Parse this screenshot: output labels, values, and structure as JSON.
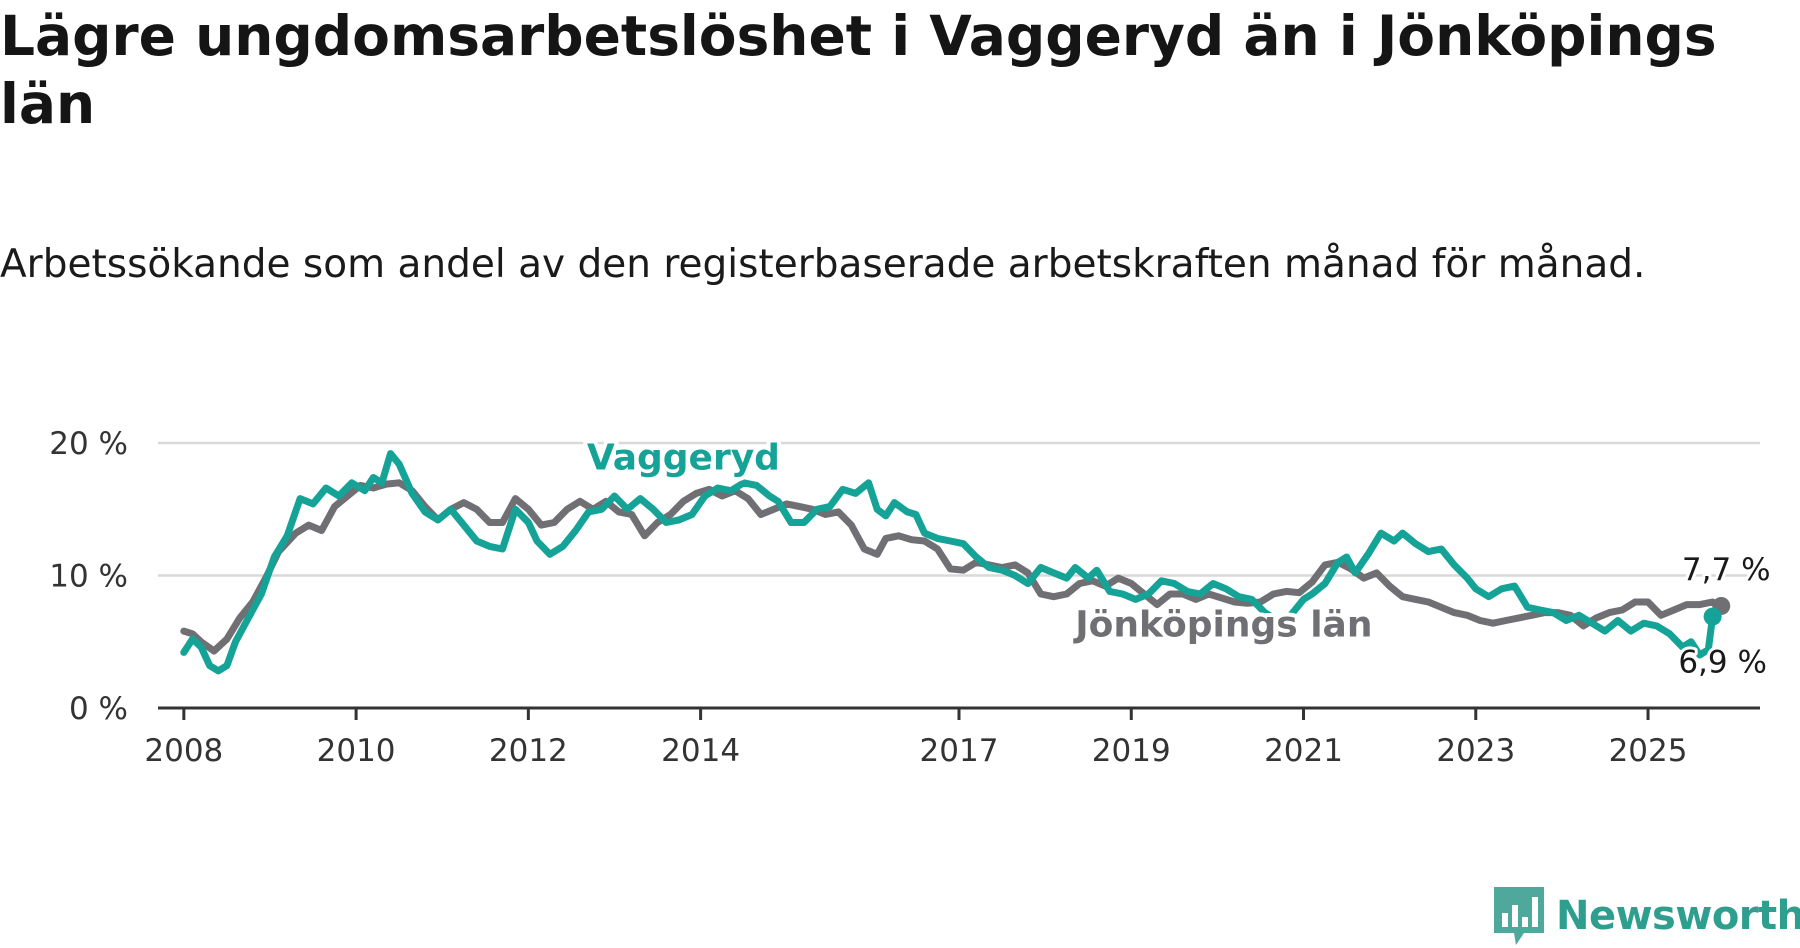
{
  "page": {
    "title": "Lägre ungdomsarbetslöshet i Vaggeryd än i Jönköpings län",
    "subtitle": "Arbetssökande som andel av den registerbaserade arbetskraften månad för månad.",
    "brand": "Newsworthy"
  },
  "colors": {
    "vaggeryd": "#14a396",
    "jonkoping": "#706f74",
    "grid": "#d9d9d9",
    "axis": "#333333"
  },
  "icons": {
    "brand_logo": "newsworthy-bar-chart-icon"
  },
  "chart_data": {
    "type": "line",
    "title": "Lägre ungdomsarbetslöshet i Vaggeryd än i Jönköpings län",
    "subtitle": "Arbetssökande som andel av den registerbaserade arbetskraften månad för månad.",
    "xlabel": "",
    "ylabel": "",
    "ylim": [
      0,
      20
    ],
    "xlim": [
      2007.7,
      2026.3
    ],
    "grid": true,
    "legend": "inline labels",
    "yticks": [
      {
        "value": 0,
        "label": "0 %"
      },
      {
        "value": 10,
        "label": "10 %"
      },
      {
        "value": 20,
        "label": "20 %"
      }
    ],
    "xticks": [
      {
        "value": 2008,
        "label": "2008"
      },
      {
        "value": 2010,
        "label": "2010"
      },
      {
        "value": 2012,
        "label": "2012"
      },
      {
        "value": 2014,
        "label": "2014"
      },
      {
        "value": 2017,
        "label": "2017"
      },
      {
        "value": 2019,
        "label": "2019"
      },
      {
        "value": 2021,
        "label": "2021"
      },
      {
        "value": 2023,
        "label": "2023"
      },
      {
        "value": 2025,
        "label": "2025"
      }
    ],
    "series": [
      {
        "name": "Jönköpings län",
        "key": "jonkoping",
        "points": [
          [
            2008.0,
            5.8
          ],
          [
            2008.1,
            5.6
          ],
          [
            2008.2,
            5.0
          ],
          [
            2008.35,
            4.3
          ],
          [
            2008.5,
            5.2
          ],
          [
            2008.65,
            6.8
          ],
          [
            2008.8,
            8.0
          ],
          [
            2008.95,
            9.8
          ],
          [
            2009.1,
            11.8
          ],
          [
            2009.3,
            13.2
          ],
          [
            2009.45,
            13.8
          ],
          [
            2009.6,
            13.4
          ],
          [
            2009.75,
            15.2
          ],
          [
            2009.9,
            16.0
          ],
          [
            2010.05,
            16.8
          ],
          [
            2010.2,
            16.6
          ],
          [
            2010.35,
            16.9
          ],
          [
            2010.5,
            17.0
          ],
          [
            2010.65,
            16.4
          ],
          [
            2010.8,
            15.2
          ],
          [
            2010.95,
            14.2
          ],
          [
            2011.1,
            15.0
          ],
          [
            2011.25,
            15.5
          ],
          [
            2011.4,
            15.0
          ],
          [
            2011.55,
            14.0
          ],
          [
            2011.7,
            14.0
          ],
          [
            2011.85,
            15.8
          ],
          [
            2012.0,
            15.0
          ],
          [
            2012.15,
            13.8
          ],
          [
            2012.3,
            14.0
          ],
          [
            2012.45,
            15.0
          ],
          [
            2012.6,
            15.6
          ],
          [
            2012.75,
            15.0
          ],
          [
            2012.9,
            15.6
          ],
          [
            2013.05,
            14.8
          ],
          [
            2013.2,
            14.6
          ],
          [
            2013.35,
            13.0
          ],
          [
            2013.5,
            14.0
          ],
          [
            2013.65,
            14.6
          ],
          [
            2013.8,
            15.6
          ],
          [
            2013.95,
            16.2
          ],
          [
            2014.1,
            16.5
          ],
          [
            2014.25,
            16.0
          ],
          [
            2014.4,
            16.4
          ],
          [
            2014.55,
            15.8
          ],
          [
            2014.7,
            14.6
          ],
          [
            2014.85,
            15.0
          ],
          [
            2015.0,
            15.4
          ],
          [
            2015.15,
            15.2
          ],
          [
            2015.3,
            15.0
          ],
          [
            2015.45,
            14.6
          ],
          [
            2015.6,
            14.8
          ],
          [
            2015.75,
            13.8
          ],
          [
            2015.9,
            12.0
          ],
          [
            2016.05,
            11.6
          ],
          [
            2016.15,
            12.8
          ],
          [
            2016.3,
            13.0
          ],
          [
            2016.45,
            12.7
          ],
          [
            2016.6,
            12.6
          ],
          [
            2016.75,
            12.0
          ],
          [
            2016.9,
            10.5
          ],
          [
            2017.05,
            10.4
          ],
          [
            2017.2,
            11.0
          ],
          [
            2017.35,
            10.8
          ],
          [
            2017.5,
            10.6
          ],
          [
            2017.65,
            10.8
          ],
          [
            2017.8,
            10.2
          ],
          [
            2017.95,
            8.6
          ],
          [
            2018.1,
            8.4
          ],
          [
            2018.25,
            8.6
          ],
          [
            2018.4,
            9.4
          ],
          [
            2018.55,
            9.6
          ],
          [
            2018.7,
            9.2
          ],
          [
            2018.85,
            9.8
          ],
          [
            2019.0,
            9.4
          ],
          [
            2019.15,
            8.6
          ],
          [
            2019.3,
            7.8
          ],
          [
            2019.45,
            8.6
          ],
          [
            2019.6,
            8.6
          ],
          [
            2019.75,
            8.2
          ],
          [
            2019.9,
            8.6
          ],
          [
            2020.05,
            8.3
          ],
          [
            2020.2,
            8.0
          ],
          [
            2020.35,
            7.9
          ],
          [
            2020.5,
            8.0
          ],
          [
            2020.65,
            8.6
          ],
          [
            2020.8,
            8.8
          ],
          [
            2020.95,
            8.7
          ],
          [
            2021.1,
            9.5
          ],
          [
            2021.25,
            10.8
          ],
          [
            2021.4,
            11.0
          ],
          [
            2021.55,
            10.5
          ],
          [
            2021.7,
            9.8
          ],
          [
            2021.85,
            10.2
          ],
          [
            2022.0,
            9.2
          ],
          [
            2022.15,
            8.4
          ],
          [
            2022.3,
            8.2
          ],
          [
            2022.45,
            8.0
          ],
          [
            2022.6,
            7.6
          ],
          [
            2022.75,
            7.2
          ],
          [
            2022.9,
            7.0
          ],
          [
            2023.05,
            6.6
          ],
          [
            2023.2,
            6.4
          ],
          [
            2023.35,
            6.6
          ],
          [
            2023.5,
            6.8
          ],
          [
            2023.65,
            7.0
          ],
          [
            2023.8,
            7.2
          ],
          [
            2023.95,
            7.2
          ],
          [
            2024.1,
            7.0
          ],
          [
            2024.25,
            6.2
          ],
          [
            2024.4,
            6.8
          ],
          [
            2024.55,
            7.2
          ],
          [
            2024.7,
            7.4
          ],
          [
            2024.85,
            8.0
          ],
          [
            2025.0,
            8.0
          ],
          [
            2025.15,
            7.0
          ],
          [
            2025.3,
            7.4
          ],
          [
            2025.45,
            7.8
          ],
          [
            2025.6,
            7.8
          ],
          [
            2025.75,
            8.0
          ],
          [
            2025.85,
            7.7
          ]
        ]
      },
      {
        "name": "Vaggeryd",
        "key": "vaggeryd",
        "points": [
          [
            2008.0,
            4.2
          ],
          [
            2008.1,
            5.2
          ],
          [
            2008.2,
            4.6
          ],
          [
            2008.3,
            3.2
          ],
          [
            2008.4,
            2.8
          ],
          [
            2008.5,
            3.2
          ],
          [
            2008.6,
            5.0
          ],
          [
            2008.75,
            6.8
          ],
          [
            2008.9,
            8.6
          ],
          [
            2009.05,
            11.4
          ],
          [
            2009.2,
            13.0
          ],
          [
            2009.35,
            15.8
          ],
          [
            2009.5,
            15.4
          ],
          [
            2009.65,
            16.6
          ],
          [
            2009.8,
            16.0
          ],
          [
            2009.95,
            17.0
          ],
          [
            2010.1,
            16.4
          ],
          [
            2010.2,
            17.4
          ],
          [
            2010.3,
            17.0
          ],
          [
            2010.4,
            19.2
          ],
          [
            2010.5,
            18.4
          ],
          [
            2010.65,
            16.2
          ],
          [
            2010.8,
            14.8
          ],
          [
            2010.95,
            14.2
          ],
          [
            2011.1,
            15.0
          ],
          [
            2011.25,
            13.8
          ],
          [
            2011.4,
            12.6
          ],
          [
            2011.55,
            12.2
          ],
          [
            2011.7,
            12.0
          ],
          [
            2011.85,
            15.0
          ],
          [
            2012.0,
            14.0
          ],
          [
            2012.1,
            12.6
          ],
          [
            2012.25,
            11.6
          ],
          [
            2012.4,
            12.2
          ],
          [
            2012.55,
            13.4
          ],
          [
            2012.7,
            14.8
          ],
          [
            2012.85,
            15.0
          ],
          [
            2013.0,
            16.0
          ],
          [
            2013.15,
            15.0
          ],
          [
            2013.3,
            15.8
          ],
          [
            2013.45,
            15.0
          ],
          [
            2013.6,
            14.0
          ],
          [
            2013.75,
            14.2
          ],
          [
            2013.9,
            14.6
          ],
          [
            2014.05,
            16.0
          ],
          [
            2014.2,
            16.6
          ],
          [
            2014.35,
            16.4
          ],
          [
            2014.5,
            17.0
          ],
          [
            2014.65,
            16.8
          ],
          [
            2014.8,
            16.0
          ],
          [
            2014.9,
            15.6
          ],
          [
            2015.05,
            14.0
          ],
          [
            2015.2,
            14.0
          ],
          [
            2015.35,
            15.0
          ],
          [
            2015.5,
            15.2
          ],
          [
            2015.65,
            16.5
          ],
          [
            2015.8,
            16.2
          ],
          [
            2015.95,
            17.0
          ],
          [
            2016.05,
            15.0
          ],
          [
            2016.15,
            14.5
          ],
          [
            2016.25,
            15.5
          ],
          [
            2016.4,
            14.8
          ],
          [
            2016.5,
            14.6
          ],
          [
            2016.6,
            13.2
          ],
          [
            2016.75,
            12.8
          ],
          [
            2016.9,
            12.6
          ],
          [
            2017.05,
            12.4
          ],
          [
            2017.2,
            11.4
          ],
          [
            2017.35,
            10.6
          ],
          [
            2017.5,
            10.4
          ],
          [
            2017.65,
            10.0
          ],
          [
            2017.8,
            9.4
          ],
          [
            2017.95,
            10.6
          ],
          [
            2018.1,
            10.2
          ],
          [
            2018.25,
            9.8
          ],
          [
            2018.35,
            10.6
          ],
          [
            2018.5,
            9.8
          ],
          [
            2018.6,
            10.4
          ],
          [
            2018.75,
            8.8
          ],
          [
            2018.9,
            8.6
          ],
          [
            2019.05,
            8.2
          ],
          [
            2019.2,
            8.6
          ],
          [
            2019.35,
            9.6
          ],
          [
            2019.5,
            9.4
          ],
          [
            2019.65,
            8.8
          ],
          [
            2019.8,
            8.6
          ],
          [
            2019.95,
            9.4
          ],
          [
            2020.1,
            9.0
          ],
          [
            2020.25,
            8.4
          ],
          [
            2020.4,
            8.2
          ],
          [
            2020.55,
            7.2
          ],
          [
            2020.7,
            6.6
          ],
          [
            2020.85,
            7.0
          ],
          [
            2021.0,
            8.2
          ],
          [
            2021.1,
            8.6
          ],
          [
            2021.25,
            9.4
          ],
          [
            2021.4,
            11.0
          ],
          [
            2021.5,
            11.4
          ],
          [
            2021.6,
            10.2
          ],
          [
            2021.75,
            11.6
          ],
          [
            2021.9,
            13.2
          ],
          [
            2022.05,
            12.6
          ],
          [
            2022.15,
            13.2
          ],
          [
            2022.3,
            12.4
          ],
          [
            2022.45,
            11.8
          ],
          [
            2022.6,
            12.0
          ],
          [
            2022.75,
            10.8
          ],
          [
            2022.9,
            9.8
          ],
          [
            2023.0,
            9.0
          ],
          [
            2023.15,
            8.4
          ],
          [
            2023.3,
            9.0
          ],
          [
            2023.45,
            9.2
          ],
          [
            2023.6,
            7.6
          ],
          [
            2023.75,
            7.4
          ],
          [
            2023.9,
            7.2
          ],
          [
            2024.05,
            6.6
          ],
          [
            2024.2,
            7.0
          ],
          [
            2024.35,
            6.4
          ],
          [
            2024.5,
            5.8
          ],
          [
            2024.65,
            6.6
          ],
          [
            2024.8,
            5.8
          ],
          [
            2024.95,
            6.4
          ],
          [
            2025.1,
            6.2
          ],
          [
            2025.25,
            5.6
          ],
          [
            2025.4,
            4.6
          ],
          [
            2025.5,
            5.0
          ],
          [
            2025.6,
            4.0
          ],
          [
            2025.7,
            4.4
          ],
          [
            2025.75,
            6.9
          ]
        ]
      }
    ],
    "annotations": {
      "vaggeryd_label": "Vaggeryd",
      "jonkoping_label": "Jönköpings län",
      "jonkoping_end": "7,7 %",
      "vaggeryd_end": "6,9 %"
    }
  }
}
